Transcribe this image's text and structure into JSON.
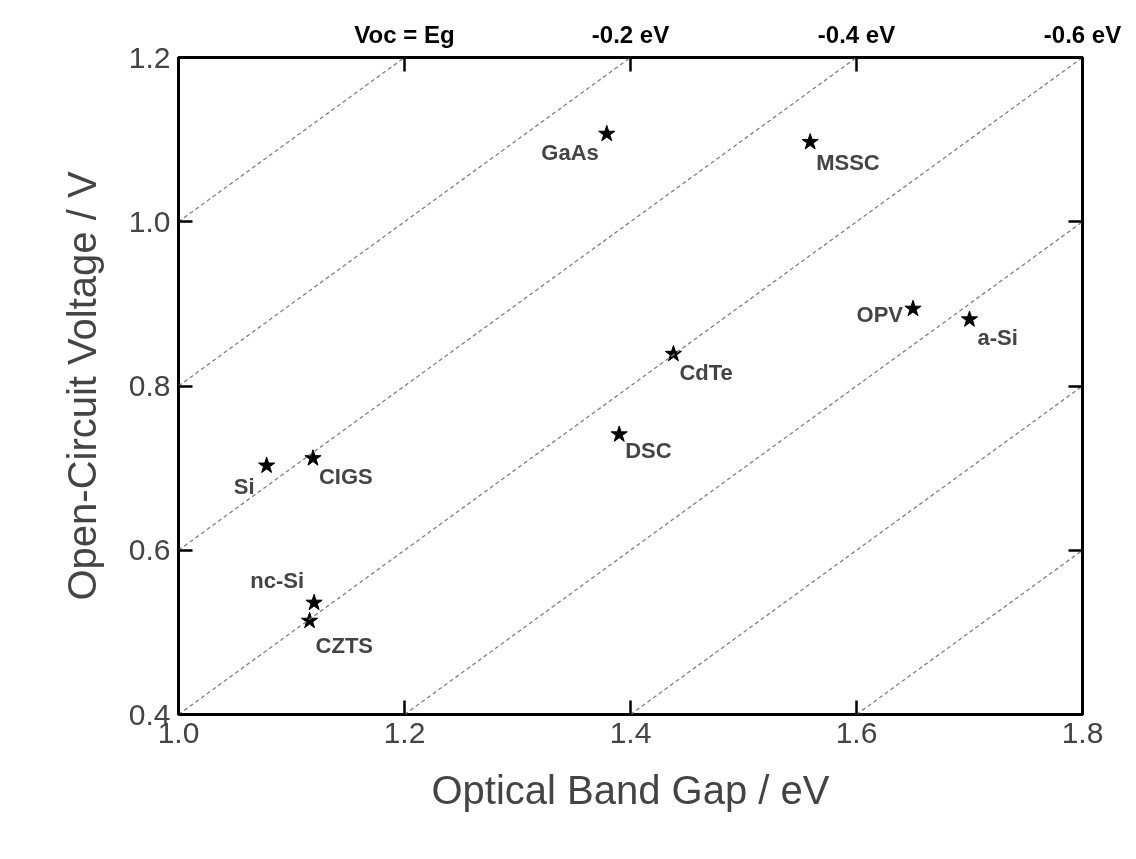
{
  "chart_data": {
    "type": "scatter",
    "xlabel": "Optical Band Gap / eV",
    "ylabel": "Open-Circuit Voltage / V",
    "xlim": [
      1.0,
      1.8
    ],
    "xticks": [
      {
        "value": 1.0,
        "label": "1.0"
      },
      1.2,
      1.4,
      1.6,
      1.8
    ],
    "ylim": [
      0.4,
      1.2
    ],
    "yticks": [
      0.4,
      0.6,
      0.8,
      {
        "value": 1.0,
        "label": "1.0"
      },
      1.2
    ],
    "grid": false,
    "legend": false,
    "series": [
      {
        "type": "scatter",
        "marker": "star",
        "color": "#000000",
        "x": [
          1.078,
          1.119,
          1.12,
          1.116,
          1.379,
          1.559,
          1.65,
          1.7,
          1.438,
          1.39
        ],
        "values": [
          0.703,
          0.712,
          0.536,
          0.514,
          1.107,
          1.097,
          0.894,
          0.881,
          0.839,
          0.741
        ]
      },
      {
        "type": "line",
        "name": "Voc = Eg",
        "line_style": "dashed",
        "color": "#808080",
        "x": [
          1.0,
          1.2
        ],
        "values": [
          1.0,
          1.2
        ]
      },
      {
        "type": "line",
        "name": "-0.2 eV",
        "line_style": "dashed",
        "color": "#808080",
        "x": [
          1.0,
          1.4
        ],
        "values": [
          0.8,
          1.2
        ]
      },
      {
        "type": "line",
        "name": "-0.4 eV",
        "line_style": "dashed",
        "color": "#808080",
        "x": [
          1.0,
          1.6
        ],
        "values": [
          0.6,
          1.2
        ]
      },
      {
        "type": "line",
        "name": "-0.6 eV",
        "line_style": "dashed",
        "color": "#808080",
        "x": [
          1.0,
          1.8
        ],
        "values": [
          0.4,
          1.2
        ]
      },
      {
        "type": "line",
        "line_style": "dashed",
        "color": "#808080",
        "x": [
          1.2,
          1.8
        ],
        "values": [
          0.4,
          1.0
        ]
      },
      {
        "type": "line",
        "line_style": "dashed",
        "color": "#808080",
        "x": [
          1.4,
          1.8
        ],
        "values": [
          0.4,
          0.8
        ]
      },
      {
        "type": "line",
        "line_style": "dashed",
        "color": "#808080",
        "x": [
          1.6,
          1.8
        ],
        "values": [
          0.4,
          0.6
        ]
      }
    ],
    "annotations": [
      {
        "text": "Si",
        "x": 1.078,
        "y": 0.703
      },
      {
        "text": "CIGS",
        "x": 1.119,
        "y": 0.712
      },
      {
        "text": "nc-Si",
        "x": 1.12,
        "y": 0.536
      },
      {
        "text": "CZTS",
        "x": 1.116,
        "y": 0.514
      },
      {
        "text": "GaAs",
        "x": 1.379,
        "y": 1.107
      },
      {
        "text": "MSSC",
        "x": 1.559,
        "y": 1.097
      },
      {
        "text": "OPV",
        "x": 1.65,
        "y": 0.894
      },
      {
        "text": "a-Si",
        "x": 1.7,
        "y": 0.881
      },
      {
        "text": "CdTe",
        "x": 1.438,
        "y": 0.839
      },
      {
        "text": "DSC",
        "x": 1.39,
        "y": 0.741
      }
    ]
  }
}
